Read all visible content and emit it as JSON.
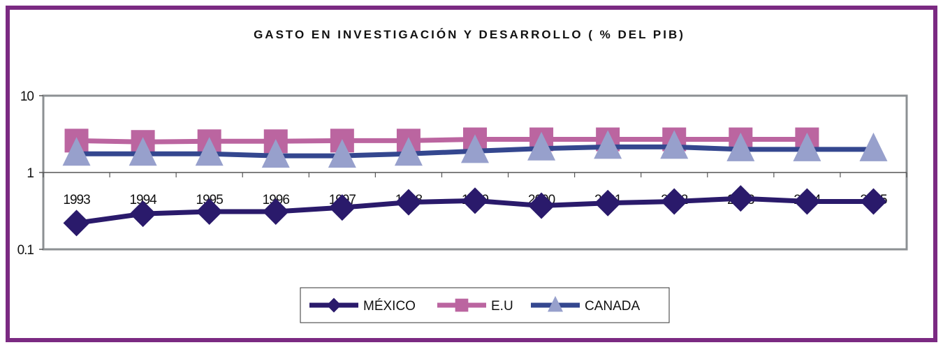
{
  "chart_data": {
    "type": "line",
    "title": "GASTO EN INVESTIGACIÓN Y DESARROLLO ( % DEL PIB)",
    "xlabel": "",
    "ylabel": "",
    "yscale": "log",
    "ylim": [
      0.1,
      10
    ],
    "yticks": [
      "10",
      "1",
      "0.1"
    ],
    "ytick_values": [
      10,
      1,
      0.1
    ],
    "categories": [
      "1993",
      "1994",
      "1995",
      "1996",
      "1997",
      "1998",
      "1999",
      "2000",
      "2001",
      "2002",
      "2003",
      "2004",
      "2005"
    ],
    "series": [
      {
        "name": "MÉXICO",
        "color": "#2a1a6b",
        "marker": "diamond",
        "values": [
          0.22,
          0.29,
          0.31,
          0.31,
          0.35,
          0.41,
          0.43,
          0.37,
          0.4,
          0.42,
          0.46,
          0.42,
          0.42
        ]
      },
      {
        "name": "E.U",
        "color": "#bb65a0",
        "marker": "square",
        "values": [
          2.6,
          2.5,
          2.55,
          2.55,
          2.6,
          2.6,
          2.7,
          2.7,
          2.7,
          2.7,
          2.7,
          2.7,
          null
        ]
      },
      {
        "name": "CANADA",
        "color": "#34478f",
        "markerColor": "#97a0cc",
        "marker": "triangle",
        "values": [
          1.75,
          1.75,
          1.75,
          1.65,
          1.65,
          1.75,
          1.9,
          2.05,
          2.15,
          2.15,
          2.0,
          2.0,
          2.0
        ]
      }
    ],
    "legend_position": "bottom-center",
    "grid": false
  }
}
